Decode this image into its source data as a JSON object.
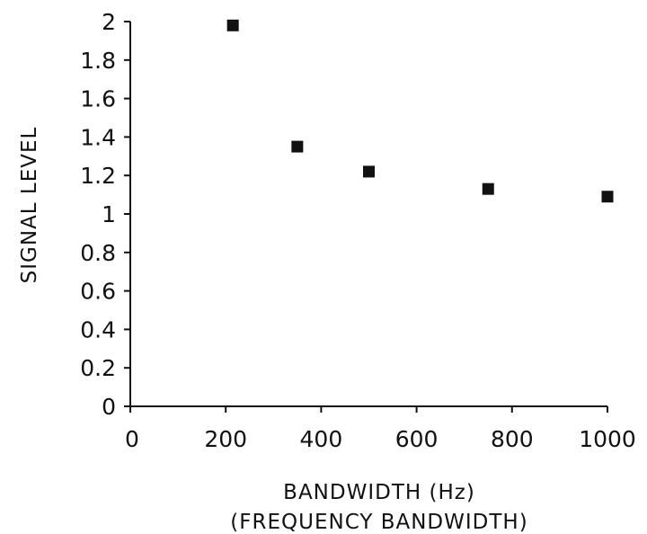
{
  "chart_data": {
    "type": "scatter",
    "title": "",
    "xlabel": "BANDWIDTH (Hz)",
    "xlabel_sub": "(FREQUENCY BANDWIDTH)",
    "ylabel": "SIGNAL LEVEL",
    "xlim": [
      0,
      1000
    ],
    "ylim": [
      0,
      2
    ],
    "xticks": [
      0,
      200,
      400,
      600,
      800,
      1000
    ],
    "xtick_labels": [
      "0",
      "200",
      "400",
      "600",
      "800",
      "1000"
    ],
    "yticks": [
      0,
      0.2,
      0.4,
      0.6,
      0.8,
      1,
      1.2,
      1.4,
      1.6,
      1.8,
      2
    ],
    "ytick_labels": [
      "0",
      "0.2",
      "0.4",
      "0.6",
      "0.8",
      "1",
      "1.2",
      "1.4",
      "1.6",
      "1.8",
      "2"
    ],
    "grid": false,
    "marker": "square",
    "marker_color": "#111111",
    "points": [
      {
        "x": 215,
        "y": 1.98
      },
      {
        "x": 350,
        "y": 1.35
      },
      {
        "x": 500,
        "y": 1.22
      },
      {
        "x": 750,
        "y": 1.13
      },
      {
        "x": 1000,
        "y": 1.09
      }
    ]
  }
}
